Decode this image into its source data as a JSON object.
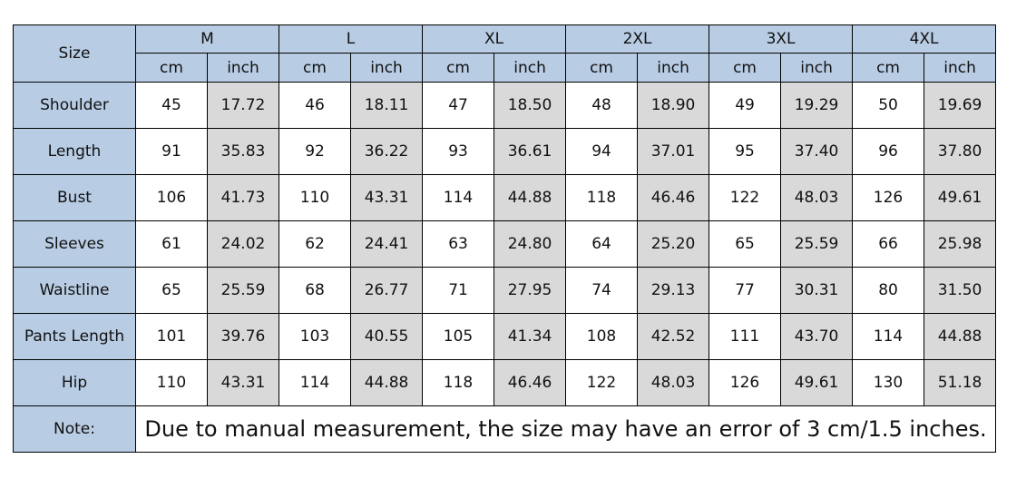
{
  "header": {
    "size_label": "Size",
    "sizes": [
      "M",
      "L",
      "XL",
      "2XL",
      "3XL",
      "4XL"
    ],
    "units": [
      "cm",
      "inch"
    ]
  },
  "rows": [
    {
      "label": "Shoulder",
      "values": [
        "45",
        "17.72",
        "46",
        "18.11",
        "47",
        "18.50",
        "48",
        "18.90",
        "49",
        "19.29",
        "50",
        "19.69"
      ]
    },
    {
      "label": "Length",
      "values": [
        "91",
        "35.83",
        "92",
        "36.22",
        "93",
        "36.61",
        "94",
        "37.01",
        "95",
        "37.40",
        "96",
        "37.80"
      ]
    },
    {
      "label": "Bust",
      "values": [
        "106",
        "41.73",
        "110",
        "43.31",
        "114",
        "44.88",
        "118",
        "46.46",
        "122",
        "48.03",
        "126",
        "49.61"
      ]
    },
    {
      "label": "Sleeves",
      "values": [
        "61",
        "24.02",
        "62",
        "24.41",
        "63",
        "24.80",
        "64",
        "25.20",
        "65",
        "25.59",
        "66",
        "25.98"
      ]
    },
    {
      "label": "Waistline",
      "values": [
        "65",
        "25.59",
        "68",
        "26.77",
        "71",
        "27.95",
        "74",
        "29.13",
        "77",
        "30.31",
        "80",
        "31.50"
      ]
    },
    {
      "label": "Pants Length",
      "values": [
        "101",
        "39.76",
        "103",
        "40.55",
        "105",
        "41.34",
        "108",
        "42.52",
        "111",
        "43.70",
        "114",
        "44.88"
      ]
    },
    {
      "label": "Hip",
      "values": [
        "110",
        "43.31",
        "114",
        "44.88",
        "118",
        "46.46",
        "122",
        "48.03",
        "126",
        "49.61",
        "130",
        "51.18"
      ]
    }
  ],
  "note": {
    "label": "Note:",
    "text": "Due to manual measurement, the size may have an error of 3 cm/1.5 inches."
  }
}
